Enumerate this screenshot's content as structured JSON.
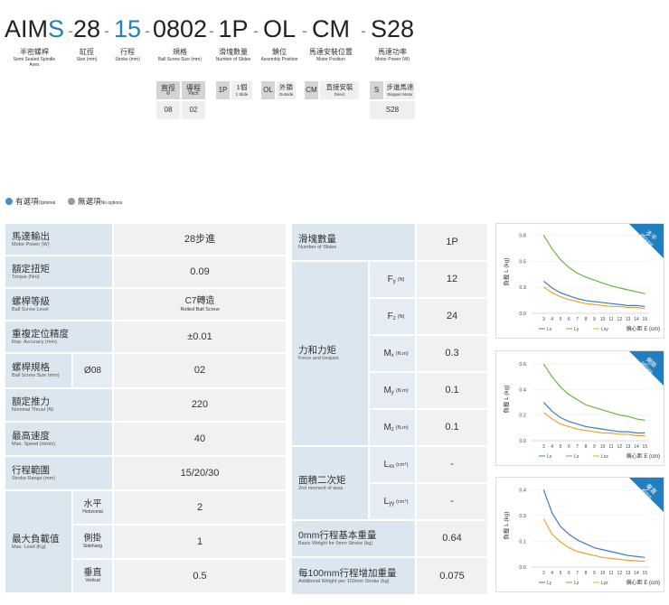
{
  "header": {
    "separator": "-",
    "highlight_color": "#1f7fc0",
    "segments": [
      {
        "code": [
          {
            "text": "AIM"
          },
          {
            "text": "S",
            "highlight": true
          }
        ],
        "zh": "半密螺桿",
        "en": "Semi Sealed Spindle Axes"
      },
      {
        "code": [
          {
            "text": "28"
          }
        ],
        "zh": "缸徑",
        "en": "Size (mm)"
      },
      {
        "code": [
          {
            "text": "15",
            "highlight": true
          }
        ],
        "zh": "行程",
        "en": "Stroke (mm)"
      },
      {
        "code": [
          {
            "text": "0802"
          }
        ],
        "zh": "規格",
        "en": "Ball Screw Size (mm)"
      },
      {
        "code": [
          {
            "text": "1P"
          }
        ],
        "zh": "滑塊數量",
        "en": "Number of Slides"
      },
      {
        "code": [
          {
            "text": "OL"
          }
        ],
        "zh": "鎖位",
        "en": "Assembly Position"
      },
      {
        "code": [
          {
            "text": "CM"
          }
        ],
        "zh": "馬達安裝位置",
        "en": "Motor Position"
      },
      {
        "code": [
          {
            "text": "S28"
          }
        ],
        "zh": "馬達功率",
        "en": "Motor Power (W)"
      }
    ]
  },
  "options": {
    "screw": [
      {
        "zh": "直徑",
        "en": "Φ",
        "value": "08"
      },
      {
        "zh": "導程",
        "en": "Pitch",
        "value": "02"
      }
    ],
    "items": [
      {
        "code": "1P",
        "zh": "1個",
        "en": "1 Slide"
      },
      {
        "code": "OL",
        "zh": "外鎖",
        "en": "Outside"
      },
      {
        "code": "CM",
        "zh": "直接安裝",
        "en": "Direct"
      },
      {
        "code": "S",
        "zh": "步進馬達",
        "en": "Stepper Motor",
        "value": "S28"
      }
    ]
  },
  "legend": [
    {
      "zh": "有選項",
      "en": "Optional",
      "color": "#4a90c8"
    },
    {
      "zh": "無選項",
      "en": "No options",
      "color": "#9a9a9a"
    }
  ],
  "spec_table": [
    {
      "zh": "馬達輸出",
      "en": "Motor Power (W)",
      "value": "28步進"
    },
    {
      "zh": "額定扭矩",
      "en": "Torque (Nm)",
      "value": 0.09
    },
    {
      "zh": "螺桿等級",
      "en": "Ball Screw Level",
      "value": {
        "zh": "C7轉造",
        "en": "Rolled Ball Screw"
      }
    },
    {
      "zh": "重複定位精度",
      "en": "Rep. Accuracy (mm)",
      "value": "±0.01"
    },
    {
      "zh": "螺桿規格",
      "en": "Ball Screw Size (mm)",
      "sub": "Ø08",
      "value": "02"
    },
    {
      "zh": "額定推力",
      "en": "Nominal Thrust (N)",
      "value": 220
    },
    {
      "zh": "最高速度",
      "en": "Max. Speed (mm/s)",
      "value": 40
    },
    {
      "zh": "行程範圍",
      "en": "Stroke Range (mm)",
      "value": "15/20/30"
    },
    {
      "zh": "最大負載值",
      "en": "Max. Load (Kg)",
      "subrows": [
        {
          "zh": "水平",
          "en": "Horizontal",
          "value": 2
        },
        {
          "zh": "側掛",
          "en": "Sidehang",
          "value": 1
        },
        {
          "zh": "垂直",
          "en": "Vertical",
          "value": 0.5
        }
      ]
    }
  ],
  "load_table": [
    {
      "zh": "滑塊數量",
      "en": "Number of Slides",
      "value": "1P"
    },
    {
      "zh": "力和力矩",
      "en": "Force and torques",
      "subrows": [
        {
          "sym": "F",
          "sub": "y",
          "unit": "(N)",
          "value": 12
        },
        {
          "sym": "F",
          "sub": "z",
          "unit": "(N)",
          "value": 24
        },
        {
          "sym": "M",
          "sub": "x",
          "unit": "(N.m)",
          "value": 0.3
        },
        {
          "sym": "M",
          "sub": "y",
          "unit": "(N.m)",
          "value": 0.1
        },
        {
          "sym": "M",
          "sub": "z",
          "unit": "(N.m)",
          "value": 0.1
        }
      ]
    },
    {
      "zh": "面積二次矩",
      "en": "2nd moment of area",
      "subrows": [
        {
          "sym": "L",
          "sub": "xx",
          "unit": "(cm⁴)",
          "value": "-"
        },
        {
          "sym": "L",
          "sub": "yy",
          "unit": "(cm⁴)",
          "value": "-"
        }
      ]
    },
    {
      "zh": "0mm行程基本重量",
      "en": "Basic Weight for 0mm Stroke (kg)",
      "value": 0.64
    },
    {
      "zh": "每100mm行程增加重量",
      "en": "Additional Weight per 100mm Stroke (kg)",
      "value": 0.075
    }
  ],
  "chart_data": [
    {
      "type": "line",
      "badge": {
        "zh": "水平",
        "en": "Horizontal"
      },
      "ylabel": "負載 L (kg)",
      "xlabel": "偏心距 E (cm)",
      "grid": true,
      "x": [
        3,
        4,
        5,
        6,
        7,
        8,
        9,
        10,
        11,
        12,
        13,
        14,
        15
      ],
      "xlim": [
        2,
        15.5
      ],
      "xticks": [
        3,
        4,
        5,
        6,
        7,
        8,
        9,
        10,
        11,
        12,
        13,
        14,
        15
      ],
      "ylim": [
        0,
        0.85
      ],
      "yticks": [
        {
          "value": 0,
          "label": "0.0"
        },
        {
          "value": 0.267,
          "label": "0.3"
        },
        {
          "value": 0.533,
          "label": "0.5"
        },
        {
          "value": 0.8,
          "label": "0.8"
        }
      ],
      "series": [
        {
          "name": "Lx",
          "color": "#3a7fc1",
          "values": [
            0.33,
            0.26,
            0.21,
            0.18,
            0.15,
            0.13,
            0.12,
            0.11,
            0.1,
            0.09,
            0.08,
            0.08,
            0.07
          ]
        },
        {
          "name": "Ly",
          "color": "#6db33f",
          "values": [
            0.8,
            0.66,
            0.55,
            0.47,
            0.41,
            0.37,
            0.34,
            0.31,
            0.28,
            0.26,
            0.24,
            0.22,
            0.2
          ]
        },
        {
          "name": "Lxy",
          "color": "#f0a030",
          "values": [
            0.27,
            0.21,
            0.17,
            0.14,
            0.12,
            0.1,
            0.09,
            0.08,
            0.07,
            0.07,
            0.06,
            0.06,
            0.05
          ]
        }
      ]
    },
    {
      "type": "line",
      "badge": {
        "zh": "側掛",
        "en": "Sidehang"
      },
      "ylabel": "負載 L (kg)",
      "xlabel": "偏心距 E (cm)",
      "grid": true,
      "x": [
        3,
        4,
        5,
        6,
        7,
        8,
        9,
        10,
        11,
        12,
        13,
        14,
        15
      ],
      "xlim": [
        2,
        15.5
      ],
      "xticks": [
        3,
        4,
        5,
        6,
        7,
        8,
        9,
        10,
        11,
        12,
        13,
        14,
        15
      ],
      "ylim": [
        0,
        0.65
      ],
      "yticks": [
        {
          "value": 0,
          "label": "0.0"
        },
        0.2,
        0.4,
        0.6
      ],
      "series": [
        {
          "name": "Lx",
          "color": "#3a7fc1",
          "values": [
            0.3,
            0.23,
            0.18,
            0.15,
            0.13,
            0.11,
            0.1,
            0.09,
            0.08,
            0.07,
            0.07,
            0.06,
            0.06
          ]
        },
        {
          "name": "Lz",
          "color": "#6db33f",
          "values": [
            0.6,
            0.5,
            0.42,
            0.36,
            0.32,
            0.28,
            0.26,
            0.24,
            0.22,
            0.2,
            0.19,
            0.17,
            0.16
          ]
        },
        {
          "name": "Lxz",
          "color": "#f0a030",
          "values": [
            0.22,
            0.17,
            0.13,
            0.11,
            0.09,
            0.08,
            0.07,
            0.06,
            0.06,
            0.05,
            0.05,
            0.04,
            0.04
          ]
        }
      ]
    },
    {
      "type": "line",
      "badge": {
        "zh": "垂直",
        "en": "Vertical"
      },
      "ylabel": "負載 L (kg)",
      "xlabel": "偏心距 E (cm)",
      "grid": true,
      "x": [
        3,
        4,
        5,
        6,
        7,
        8,
        9,
        10,
        11,
        12,
        13,
        14,
        15
      ],
      "xlim": [
        2,
        15.5
      ],
      "xticks": [
        3,
        4,
        5,
        6,
        7,
        8,
        9,
        10,
        11,
        12,
        13,
        14,
        15
      ],
      "ylim": [
        0,
        0.43
      ],
      "yticks": [
        {
          "value": 0,
          "label": "0.0"
        },
        {
          "value": 0.133,
          "label": "0.1"
        },
        {
          "value": 0.267,
          "label": "0.3"
        },
        0.4
      ],
      "series": [
        {
          "name": "Ly",
          "color": "#3a7fc1",
          "values": [
            0.4,
            0.28,
            0.21,
            0.17,
            0.14,
            0.12,
            0.1,
            0.09,
            0.08,
            0.07,
            0.06,
            0.055,
            0.05
          ]
        },
        {
          "name": "Lz",
          "color": "#6db33f",
          "values": [
            null,
            null,
            null,
            null,
            null,
            null,
            null,
            null,
            null,
            null,
            null,
            null,
            null
          ]
        },
        {
          "name": "Lyz",
          "color": "#f0a030",
          "values": [
            0.25,
            0.17,
            0.13,
            0.1,
            0.08,
            0.07,
            0.06,
            0.05,
            0.045,
            0.04,
            0.035,
            0.032,
            0.03
          ]
        }
      ]
    }
  ]
}
